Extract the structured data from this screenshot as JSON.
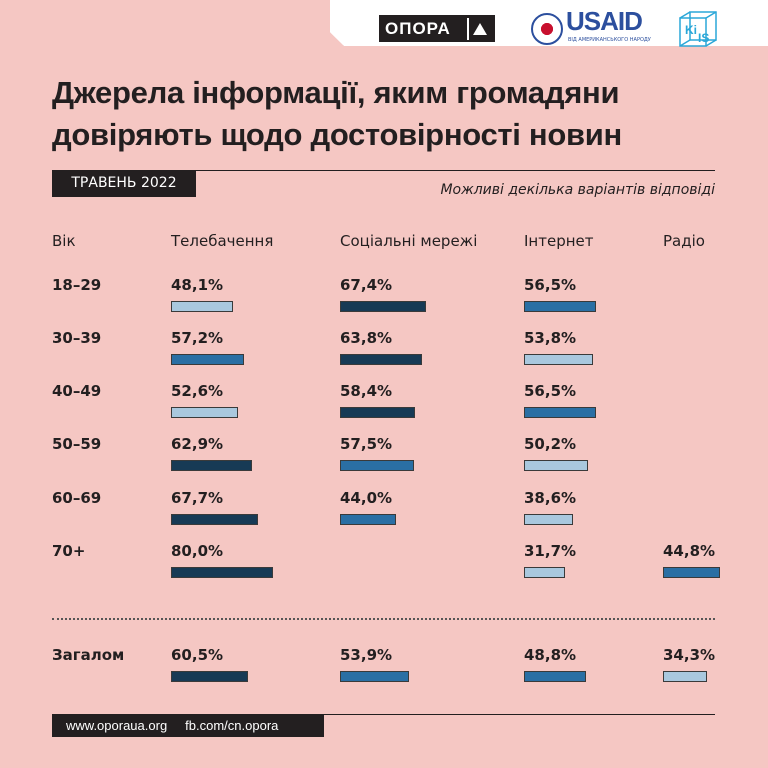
{
  "logos": {
    "opora": "ОПОРА",
    "usaid": "USAID",
    "usaid_sub": "ВІД АМЕРИКАНСЬКОГО НАРОДУ",
    "kiis": "KIIS"
  },
  "title": "Джерела інформації, яким громадяни довіряють щодо достовірності новин",
  "date_label": "ТРАВЕНЬ 2022",
  "note": "Можливі декілька варіантів відповіді",
  "colors": {
    "dark": "#173a55",
    "mid": "#2a6fa4",
    "light": "#a9c8de"
  },
  "chart_data": {
    "type": "bar",
    "title": "Джерела інформації, яким громадяни довіряють щодо достовірності новин",
    "row_header": "Вік",
    "categories": [
      "Телебачення",
      "Соціальні мережі",
      "Інтернет",
      "Радіо"
    ],
    "rows": [
      {
        "label": "18–29",
        "values": [
          "48,1%",
          "67,4%",
          "56,5%",
          null
        ],
        "num": [
          48.1,
          67.4,
          56.5,
          null
        ],
        "shade": [
          "light",
          "dark",
          "mid",
          null
        ]
      },
      {
        "label": "30–39",
        "values": [
          "57,2%",
          "63,8%",
          "53,8%",
          null
        ],
        "num": [
          57.2,
          63.8,
          53.8,
          null
        ],
        "shade": [
          "mid",
          "dark",
          "light",
          null
        ]
      },
      {
        "label": "40–49",
        "values": [
          "52,6%",
          "58,4%",
          "56,5%",
          null
        ],
        "num": [
          52.6,
          58.4,
          56.5,
          null
        ],
        "shade": [
          "light",
          "dark",
          "mid",
          null
        ]
      },
      {
        "label": "50–59",
        "values": [
          "62,9%",
          "57,5%",
          "50,2%",
          null
        ],
        "num": [
          62.9,
          57.5,
          50.2,
          null
        ],
        "shade": [
          "dark",
          "mid",
          "light",
          null
        ]
      },
      {
        "label": "60–69",
        "values": [
          "67,7%",
          "44,0%",
          "38,6%",
          null
        ],
        "num": [
          67.7,
          44.0,
          38.6,
          null
        ],
        "shade": [
          "dark",
          "mid",
          "light",
          null
        ]
      },
      {
        "label": "70+",
        "values": [
          "80,0%",
          null,
          "31,7%",
          "44,8%"
        ],
        "num": [
          80.0,
          null,
          31.7,
          44.8
        ],
        "shade": [
          "dark",
          null,
          "light",
          "mid"
        ]
      },
      {
        "label": "Загалом",
        "values": [
          "60,5%",
          "53,9%",
          "48,8%",
          "34,3%"
        ],
        "num": [
          60.5,
          53.9,
          48.8,
          34.3
        ],
        "shade": [
          "dark",
          "mid",
          "mid",
          "light"
        ]
      }
    ],
    "unit": "%"
  },
  "footer": {
    "site": "www.oporaua.org",
    "fb": "fb.com/cn.opora"
  }
}
